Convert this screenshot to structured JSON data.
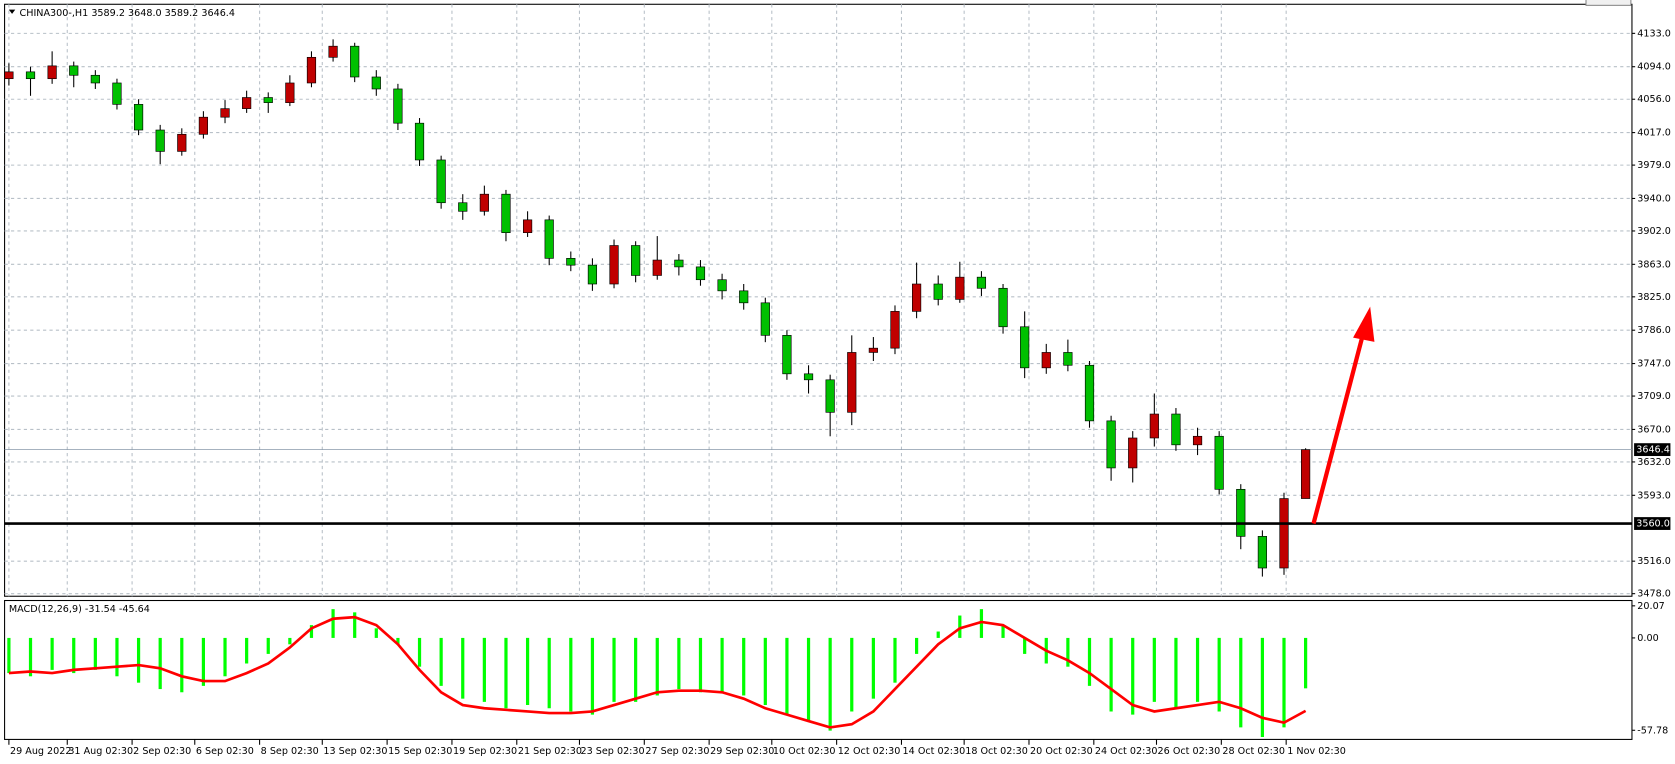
{
  "chart_data": [
    {
      "type": "candlestick",
      "title": "CHINA300-,H1  3589.2 3648.0 3589.2 3646.4",
      "open": [
        4080,
        4088,
        4080,
        4095,
        4084,
        4075,
        4050,
        4020,
        3995,
        4015,
        4035,
        4045,
        4058,
        4052,
        4075,
        4105,
        4118,
        4082,
        4068,
        4028,
        3985,
        3935,
        3925,
        3945,
        3900,
        3915,
        3870,
        3862,
        3840,
        3885,
        3850,
        3868,
        3860,
        3845,
        3832,
        3818,
        3780,
        3735,
        3728,
        3690,
        3760,
        3765,
        3808,
        3840,
        3822,
        3848,
        3835,
        3790,
        3742,
        3760,
        3745,
        3680,
        3625,
        3660,
        3688,
        3652,
        3662,
        3600,
        3545,
        3508,
        3589.2
      ],
      "high": [
        4098,
        4094,
        4112,
        4100,
        4090,
        4080,
        4056,
        4026,
        4022,
        4042,
        4055,
        4066,
        4064,
        4084,
        4112,
        4126,
        4122,
        4090,
        4074,
        4034,
        3990,
        3945,
        3955,
        3950,
        3925,
        3920,
        3878,
        3870,
        3892,
        3890,
        3896,
        3875,
        3868,
        3852,
        3840,
        3824,
        3786,
        3745,
        3734,
        3780,
        3778,
        3815,
        3865,
        3850,
        3866,
        3855,
        3840,
        3808,
        3770,
        3775,
        3750,
        3686,
        3668,
        3712,
        3695,
        3672,
        3668,
        3606,
        3552,
        3596,
        3648
      ],
      "low": [
        4072,
        4060,
        4074,
        4070,
        4068,
        4044,
        4014,
        3980,
        3990,
        4010,
        4028,
        4040,
        4040,
        4048,
        4070,
        4100,
        4076,
        4060,
        4020,
        3978,
        3928,
        3915,
        3920,
        3890,
        3895,
        3862,
        3855,
        3832,
        3835,
        3842,
        3845,
        3850,
        3838,
        3822,
        3810,
        3772,
        3728,
        3712,
        3662,
        3675,
        3750,
        3758,
        3800,
        3815,
        3818,
        3826,
        3782,
        3730,
        3735,
        3738,
        3672,
        3610,
        3608,
        3650,
        3645,
        3640,
        3594,
        3530,
        3498,
        3500,
        3589.2
      ],
      "close": [
        4088,
        4080,
        4095,
        4084,
        4075,
        4050,
        4020,
        3995,
        4015,
        4035,
        4045,
        4058,
        4052,
        4075,
        4105,
        4118,
        4082,
        4068,
        4028,
        3985,
        3935,
        3925,
        3945,
        3900,
        3915,
        3870,
        3862,
        3840,
        3885,
        3850,
        3868,
        3860,
        3845,
        3832,
        3818,
        3780,
        3735,
        3728,
        3690,
        3760,
        3765,
        3808,
        3840,
        3822,
        3848,
        3835,
        3790,
        3742,
        3760,
        3745,
        3680,
        3625,
        3660,
        3688,
        3652,
        3662,
        3600,
        3545,
        3508,
        3589.2,
        3646.4
      ],
      "up_color": "#c00000",
      "down_color": "#00c000",
      "xlim": [
        -0.2,
        75.1
      ],
      "ylim": [
        3475,
        4167
      ],
      "yticks": [
        {
          "value": 4133,
          "label": "4133.0"
        },
        {
          "value": 4094,
          "label": "4094.0"
        },
        {
          "value": 4056,
          "label": "4056.0"
        },
        {
          "value": 4017,
          "label": "4017.0"
        },
        {
          "value": 3979,
          "label": "3979.0"
        },
        {
          "value": 3940,
          "label": "3940.0"
        },
        {
          "value": 3902,
          "label": "3902.0"
        },
        {
          "value": 3863,
          "label": "3863.0"
        },
        {
          "value": 3825,
          "label": "3825.0"
        },
        {
          "value": 3786,
          "label": "3786.0"
        },
        {
          "value": 3747,
          "label": "3747.0"
        },
        {
          "value": 3709,
          "label": "3709.0"
        },
        {
          "value": 3670,
          "label": "3670.0"
        },
        {
          "value": 3632,
          "label": "3632.0"
        },
        {
          "value": 3593,
          "label": "3593.0"
        },
        {
          "value": 3516,
          "label": "3516.0"
        },
        {
          "value": 3478,
          "label": "3478.0"
        }
      ],
      "xticks": [
        {
          "value": 0,
          "label": "29 Aug 2022"
        },
        {
          "value": 2.7,
          "label": "31 Aug 02:30"
        },
        {
          "value": 5.7,
          "label": "2 Sep 02:30"
        },
        {
          "value": 8.6,
          "label": "6 Sep 02:30"
        },
        {
          "value": 11.6,
          "label": "8 Sep 02:30"
        },
        {
          "value": 14.5,
          "label": "13 Sep 02:30"
        },
        {
          "value": 17.5,
          "label": "15 Sep 02:30"
        },
        {
          "value": 20.5,
          "label": "19 Sep 02:30"
        },
        {
          "value": 23.5,
          "label": "21 Sep 02:30"
        },
        {
          "value": 26.4,
          "label": "23 Sep 02:30"
        },
        {
          "value": 29.4,
          "label": "27 Sep 02:30"
        },
        {
          "value": 32.4,
          "label": "29 Sep 02:30"
        },
        {
          "value": 35.3,
          "label": "10 Oct 02:30"
        },
        {
          "value": 38.3,
          "label": "12 Oct 02:30"
        },
        {
          "value": 41.3,
          "label": "14 Oct 02:30"
        },
        {
          "value": 44.2,
          "label": "18 Oct 02:30"
        },
        {
          "value": 47.2,
          "label": "20 Oct 02:30"
        },
        {
          "value": 50.2,
          "label": "24 Oct 02:30"
        },
        {
          "value": 53.1,
          "label": "26 Oct 02:30"
        },
        {
          "value": 56.1,
          "label": "28 Oct 02:30"
        },
        {
          "value": 59.1,
          "label": "1 Nov 02:30"
        }
      ],
      "grid": true,
      "hlines": [
        {
          "value": 3560,
          "label": "3560.0"
        }
      ],
      "last_price": 3646.4
    },
    {
      "type": "macd",
      "title": "MACD(12,26,9) -31.54 -45.64",
      "histogram": {
        "color": "#00ff00",
        "values": [
          -22,
          -24,
          -20,
          -22,
          -20,
          -24,
          -28,
          -32,
          -34,
          -30,
          -24,
          -16,
          -10,
          -4,
          8,
          18,
          16,
          6,
          -4,
          -18,
          -30,
          -38,
          -40,
          -44,
          -42,
          -44,
          -46,
          -48,
          -40,
          -40,
          -36,
          -32,
          -34,
          -34,
          -36,
          -42,
          -48,
          -52,
          -58,
          -46,
          -38,
          -28,
          -10,
          4,
          14,
          18,
          8,
          -10,
          -16,
          -18,
          -30,
          -46,
          -48,
          -40,
          -44,
          -40,
          -46,
          -56,
          -62,
          -56,
          -31.54
        ]
      },
      "signal": {
        "color": "#ff0000",
        "values": [
          -22,
          -21,
          -22,
          -20,
          -19,
          -18,
          -17,
          -19,
          -24,
          -27,
          -27,
          -22,
          -16,
          -6,
          6,
          12,
          13,
          8,
          -4,
          -20,
          -34,
          -42,
          -44,
          -45,
          -46,
          -47,
          -47,
          -46,
          -42,
          -38,
          -34,
          -33,
          -33,
          -34,
          -38,
          -44,
          -48,
          -52,
          -56,
          -54,
          -46,
          -32,
          -18,
          -4,
          6,
          10,
          8,
          0,
          -8,
          -14,
          -22,
          -32,
          -42,
          -46,
          -44,
          -42,
          -40,
          -44,
          -50,
          -53,
          -45.64
        ]
      },
      "xlim": [
        -0.2,
        75.1
      ],
      "ylim": [
        -63.5,
        23.4
      ],
      "yticks": [
        20.07,
        {
          "value": 0,
          "label": "0.00"
        },
        -57.78
      ]
    }
  ]
}
